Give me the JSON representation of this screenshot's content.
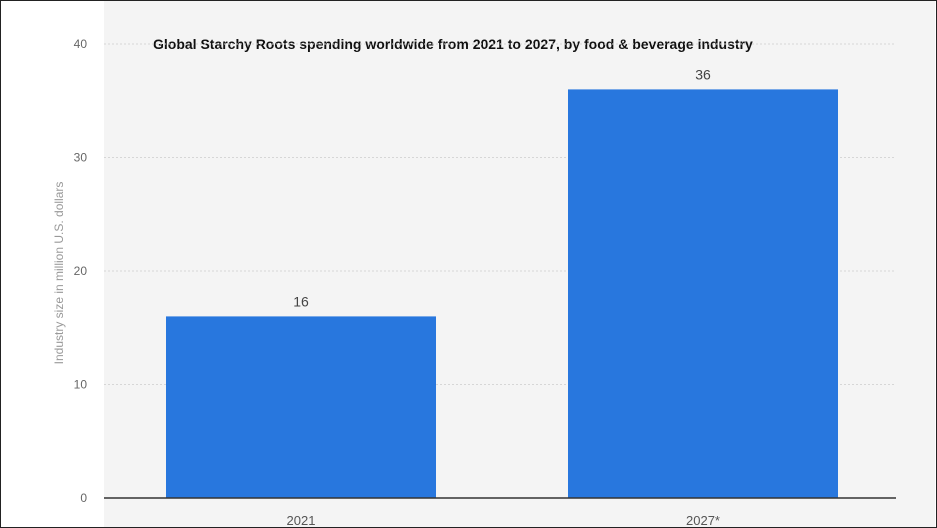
{
  "chart_data": {
    "type": "bar",
    "title": "Global Starchy Roots spending worldwide from 2021 to 2027, by food & beverage industry",
    "xlabel": "",
    "ylabel": "Industry size in million U.S. dollars",
    "categories": [
      "2021",
      "2027*"
    ],
    "values": [
      16,
      36
    ],
    "data_labels": [
      "16",
      "36"
    ],
    "ylim": [
      0,
      40
    ],
    "yticks": [
      "0",
      "10",
      "20",
      "30",
      "40"
    ],
    "grid": true,
    "bar_color": "#2877de"
  }
}
